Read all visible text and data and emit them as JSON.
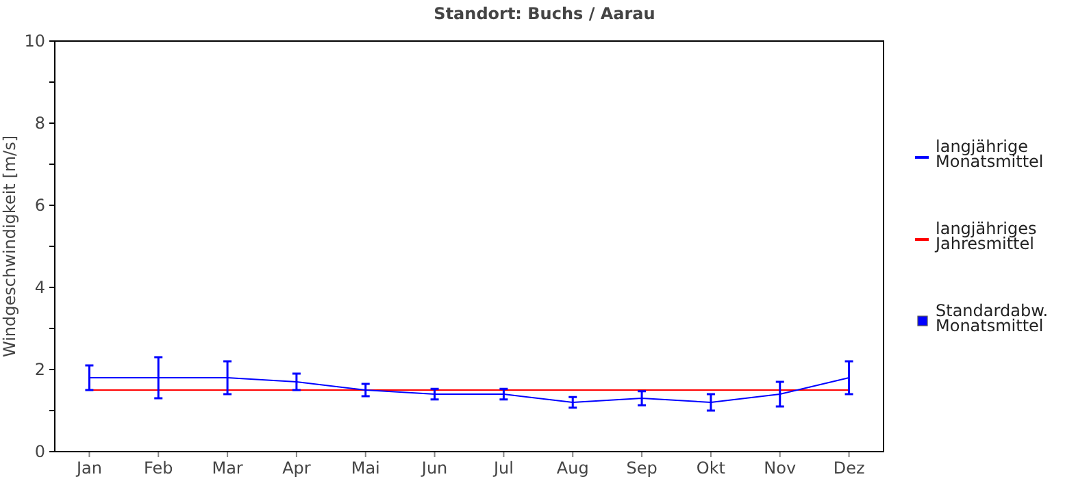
{
  "chart_data": {
    "type": "line",
    "title": "Standort: Buchs / Aarau",
    "ylabel": "Windgeschwindigkeit [m/s]",
    "categories": [
      "Jan",
      "Feb",
      "Mar",
      "Apr",
      "Mai",
      "Jun",
      "Jul",
      "Aug",
      "Sep",
      "Okt",
      "Nov",
      "Dez"
    ],
    "series": [
      {
        "name": "langjährige Monatsmittel",
        "color": "#0000ff",
        "values": [
          1.8,
          1.8,
          1.8,
          1.7,
          1.5,
          1.4,
          1.4,
          1.2,
          1.3,
          1.2,
          1.4,
          1.8
        ],
        "errors": [
          0.3,
          0.5,
          0.4,
          0.2,
          0.15,
          0.13,
          0.13,
          0.13,
          0.17,
          0.2,
          0.3,
          0.4
        ]
      },
      {
        "name": "langjähriges Jahresmittel",
        "color": "#ff0000",
        "values": [
          1.5,
          1.5,
          1.5,
          1.5,
          1.5,
          1.5,
          1.5,
          1.5,
          1.5,
          1.5,
          1.5,
          1.5
        ]
      }
    ],
    "annotations": [
      "Standardabw. Monatsmittel"
    ],
    "ylim": [
      0,
      10
    ],
    "yticks": [
      0,
      {
        "value": 1,
        "label": null
      },
      2,
      {
        "value": 3,
        "label": null
      },
      4,
      {
        "value": 5,
        "label": null
      },
      6,
      {
        "value": 7,
        "label": null
      },
      8,
      {
        "value": 9,
        "label": null
      },
      10
    ],
    "grid": false,
    "legend": "right",
    "marker": "none",
    "line_style": "solid"
  }
}
